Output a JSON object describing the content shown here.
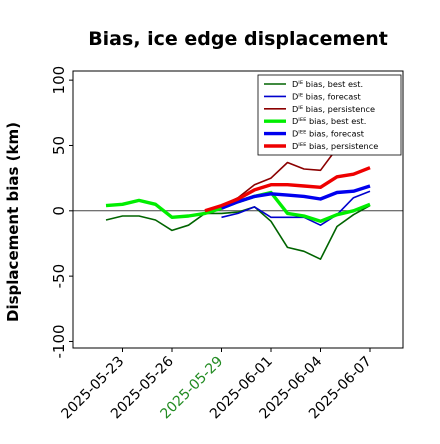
{
  "chart_data": {
    "type": "line",
    "title": "Bias, ice edge displacement",
    "ylabel": "Displacement bias (km)",
    "xlabel": "",
    "ylim": [
      -105,
      107
    ],
    "xlim": [
      "2025-05-20",
      "2025-06-09"
    ],
    "yticks": [
      -100,
      -50,
      0,
      50,
      100
    ],
    "xticks": [
      "2025-05-23",
      "2025-05-26",
      "2025-05-29",
      "2025-06-01",
      "2025-06-04",
      "2025-06-07"
    ],
    "highlighted_xtick": "2025-05-29",
    "highlight_color": "#228b22",
    "zero_line": true,
    "grid": false,
    "legend_position": "top-right",
    "series": [
      {
        "name": "Dᴵᴱ bias, best est.",
        "color": "#006400",
        "width": "thin",
        "points": [
          [
            "2025-05-22",
            -7
          ],
          [
            "2025-05-23",
            -4
          ],
          [
            "2025-05-24",
            -4
          ],
          [
            "2025-05-25",
            -7
          ],
          [
            "2025-05-26",
            -15
          ],
          [
            "2025-05-27",
            -11
          ],
          [
            "2025-05-28",
            -2
          ],
          [
            "2025-05-29",
            -2
          ],
          [
            "2025-05-30",
            -1
          ],
          [
            "2025-05-31",
            3
          ],
          [
            "2025-06-01",
            -8
          ],
          [
            "2025-06-02",
            -28
          ],
          [
            "2025-06-03",
            -31
          ],
          [
            "2025-06-04",
            -37
          ],
          [
            "2025-06-05",
            -12
          ],
          [
            "2025-06-06",
            -3
          ],
          [
            "2025-06-07",
            4
          ]
        ]
      },
      {
        "name": "Dᴵᴱ bias, forecast",
        "color": "#0000cd",
        "width": "thin",
        "points": [
          [
            "2025-05-29",
            -5
          ],
          [
            "2025-05-30",
            -2
          ],
          [
            "2025-05-31",
            3
          ],
          [
            "2025-06-01",
            -5
          ],
          [
            "2025-06-02",
            -5
          ],
          [
            "2025-06-03",
            -5
          ],
          [
            "2025-06-04",
            -11
          ],
          [
            "2025-06-05",
            -3
          ],
          [
            "2025-06-06",
            10
          ],
          [
            "2025-06-07",
            15
          ]
        ]
      },
      {
        "name": "Dᴵᴱ bias, persistence",
        "color": "#8b0000",
        "width": "thin",
        "points": [
          [
            "2025-05-28",
            0
          ],
          [
            "2025-05-29",
            4
          ],
          [
            "2025-05-30",
            10
          ],
          [
            "2025-05-31",
            20
          ],
          [
            "2025-06-01",
            25
          ],
          [
            "2025-06-02",
            37
          ],
          [
            "2025-06-03",
            32
          ],
          [
            "2025-06-04",
            31
          ],
          [
            "2025-06-05",
            48
          ],
          [
            "2025-06-06",
            53
          ]
        ]
      },
      {
        "name": "Dᴵᴱᴱ bias, best est.",
        "color": "#00ee00",
        "width": "thick",
        "points": [
          [
            "2025-05-22",
            4
          ],
          [
            "2025-05-23",
            5
          ],
          [
            "2025-05-24",
            8
          ],
          [
            "2025-05-25",
            5
          ],
          [
            "2025-05-26",
            -5
          ],
          [
            "2025-05-27",
            -4
          ],
          [
            "2025-05-28",
            -2
          ],
          [
            "2025-05-29",
            2
          ],
          [
            "2025-05-30",
            7
          ],
          [
            "2025-05-31",
            11
          ],
          [
            "2025-06-01",
            14
          ],
          [
            "2025-06-02",
            -2
          ],
          [
            "2025-06-03",
            -4
          ],
          [
            "2025-06-04",
            -8
          ],
          [
            "2025-06-05",
            -3
          ],
          [
            "2025-06-06",
            0
          ],
          [
            "2025-06-07",
            5
          ]
        ]
      },
      {
        "name": "Dᴵᴱᴱ bias, forecast",
        "color": "#0000ee",
        "width": "thick",
        "points": [
          [
            "2025-05-29",
            2
          ],
          [
            "2025-05-30",
            7
          ],
          [
            "2025-05-31",
            11
          ],
          [
            "2025-06-01",
            13
          ],
          [
            "2025-06-02",
            12
          ],
          [
            "2025-06-03",
            11
          ],
          [
            "2025-06-04",
            9
          ],
          [
            "2025-06-05",
            14
          ],
          [
            "2025-06-06",
            15
          ],
          [
            "2025-06-07",
            19
          ]
        ]
      },
      {
        "name": "Dᴵᴱᴱ bias, persistence",
        "color": "#ee0000",
        "width": "thick",
        "points": [
          [
            "2025-05-28",
            0
          ],
          [
            "2025-05-29",
            4
          ],
          [
            "2025-05-30",
            9
          ],
          [
            "2025-05-31",
            16
          ],
          [
            "2025-06-01",
            20
          ],
          [
            "2025-06-02",
            20
          ],
          [
            "2025-06-03",
            19
          ],
          [
            "2025-06-04",
            18
          ],
          [
            "2025-06-05",
            26
          ],
          [
            "2025-06-06",
            28
          ],
          [
            "2025-06-07",
            33
          ]
        ]
      }
    ]
  }
}
